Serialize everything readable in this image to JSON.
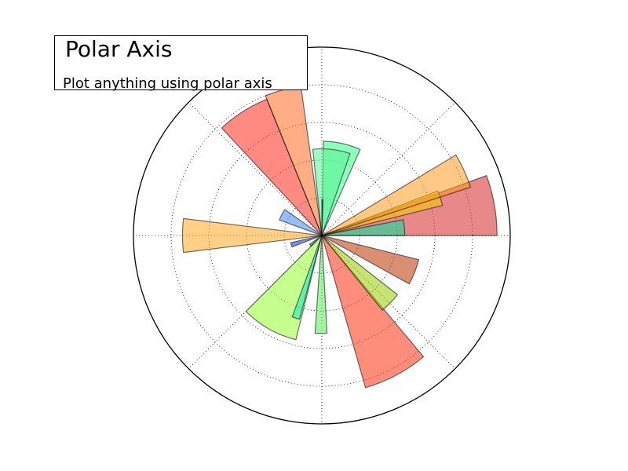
{
  "chart_data": {
    "type": "bar",
    "projection": "polar",
    "title": "Polar Axis",
    "subtitle": "Plot anything using polar axis",
    "grid": true,
    "grid_style": "dotted",
    "rmax": 10,
    "radial_gridlines": [
      2,
      4,
      6,
      8
    ],
    "angular_gridlines_deg": [
      0,
      45,
      90,
      135,
      180,
      225,
      270,
      315
    ],
    "bars": [
      {
        "theta_start": 0,
        "width": 20,
        "r": 9.3,
        "color": "#d62728"
      },
      {
        "theta_start": 0,
        "width": 11,
        "r": 4.4,
        "color": "#00e5a0"
      },
      {
        "theta_start": 14,
        "width": 7,
        "r": 6.6,
        "color": "#f7d000"
      },
      {
        "theta_start": 18,
        "width": 13,
        "r": 8.3,
        "color": "#ff9a1f"
      },
      {
        "theta_start": 66,
        "width": 23,
        "r": 5.0,
        "color": "#33ff88"
      },
      {
        "theta_start": 71,
        "width": 25,
        "r": 4.6,
        "color": "#55f08f"
      },
      {
        "theta_start": 88,
        "width": 2,
        "r": 1.9,
        "color": "#2a6fe6"
      },
      {
        "theta_start": 98,
        "width": 14,
        "r": 8.0,
        "color": "#ff6a1f"
      },
      {
        "theta_start": 112,
        "width": 21,
        "r": 7.8,
        "color": "#ff2a1a"
      },
      {
        "theta_start": 145,
        "width": 15,
        "r": 2.4,
        "color": "#4488ee"
      },
      {
        "theta_start": 173,
        "width": 14,
        "r": 7.4,
        "color": "#ffaa22"
      },
      {
        "theta_start": 193,
        "width": 8,
        "r": 1.7,
        "color": "#1133dd"
      },
      {
        "theta_start": 216,
        "width": 10,
        "r": 0.8,
        "color": "#2244cc"
      },
      {
        "theta_start": 225,
        "width": 31,
        "r": 5.7,
        "color": "#99ff33"
      },
      {
        "theta_start": 250,
        "width": 5,
        "r": 4.6,
        "color": "#11e6cc"
      },
      {
        "theta_start": 266,
        "width": 7,
        "r": 5.2,
        "color": "#55ee55"
      },
      {
        "theta_start": 286,
        "width": 24,
        "r": 8.4,
        "color": "#ff2f0f"
      },
      {
        "theta_start": 309,
        "width": 13,
        "r": 5.1,
        "color": "#99cc00"
      },
      {
        "theta_start": 331,
        "width": 15,
        "r": 5.3,
        "color": "#bb3300"
      }
    ]
  }
}
